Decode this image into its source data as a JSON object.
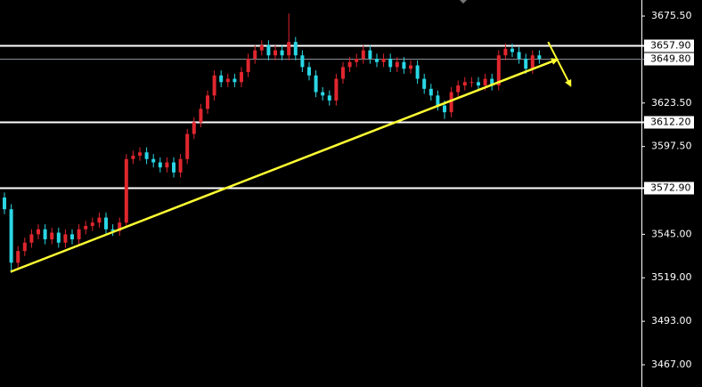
{
  "chart_data": {
    "type": "candlestick",
    "up_color": "#e0262e",
    "down_color": "#2ad6e4",
    "ylim": [
      3453.7,
      3685.1
    ],
    "yticks": [
      {
        "value": 3675.5,
        "label": "3675.50"
      },
      {
        "value": 3623.5,
        "label": "3623.50"
      },
      {
        "value": 3597.5,
        "label": "3597.50"
      },
      {
        "value": 3545,
        "label": "3545.00"
      },
      {
        "value": 3519,
        "label": "3519.00"
      },
      {
        "value": 3493,
        "label": "3493.00"
      },
      {
        "value": 3467,
        "label": "3467.00"
      }
    ],
    "levels": [
      {
        "value": 3657.9,
        "label": "3657.90",
        "color": "#ffffff"
      },
      {
        "value": 3649.8,
        "label": "3649.80",
        "color": "#8a8f99"
      },
      {
        "value": 3612.2,
        "label": "3612.20",
        "color": "#ffffff"
      },
      {
        "value": 3572.9,
        "label": "3572.90",
        "color": "#ffffff"
      }
    ],
    "trendlines": [
      {
        "x": [
          0.9,
          81.6
        ],
        "y": [
          3522.6,
          3649.5
        ],
        "color": "#ffff33"
      },
      {
        "x": [
          80.3,
          83.6
        ],
        "y": [
          3660,
          3634
        ],
        "color": "#ffff33"
      }
    ],
    "open": [
      3567,
      3560,
      3528,
      3535,
      3540,
      3545,
      3548,
      3542,
      3546,
      3540,
      3545,
      3542,
      3548,
      3550,
      3552,
      3555,
      3548,
      3547,
      3552,
      3590,
      3592,
      3594,
      3590,
      3588,
      3585,
      3588,
      3582,
      3590,
      3605,
      3612,
      3620,
      3628,
      3640,
      3636,
      3638,
      3636,
      3642,
      3650,
      3655,
      3658,
      3652,
      3655,
      3652,
      3660,
      3652,
      3645,
      3640,
      3630,
      3628,
      3625,
      3638,
      3645,
      3648,
      3650,
      3655,
      3650,
      3648,
      3650,
      3645,
      3648,
      3644,
      3646,
      3638,
      3632,
      3628,
      3622,
      3618,
      3630,
      3634,
      3636,
      3636,
      3634,
      3638,
      3634,
      3652,
      3656,
      3654,
      3650,
      3644,
      3652
    ],
    "high": [
      3570,
      3563,
      3538,
      3543,
      3548,
      3551,
      3551,
      3549,
      3549,
      3548,
      3548,
      3551,
      3553,
      3555,
      3558,
      3558,
      3551,
      3555,
      3593,
      3595,
      3597,
      3597,
      3593,
      3591,
      3591,
      3591,
      3593,
      3608,
      3615,
      3623,
      3631,
      3643,
      3643,
      3641,
      3641,
      3645,
      3653,
      3658,
      3661,
      3661,
      3658,
      3658,
      3677,
      3663,
      3655,
      3648,
      3643,
      3633,
      3631,
      3641,
      3648,
      3651,
      3653,
      3658,
      3658,
      3653,
      3653,
      3653,
      3651,
      3651,
      3649,
      3649,
      3641,
      3635,
      3631,
      3625,
      3633,
      3637,
      3639,
      3639,
      3639,
      3641,
      3641,
      3655,
      3659,
      3659,
      3657,
      3653,
      3655,
      3655
    ],
    "low": [
      3557,
      3522,
      3525,
      3532,
      3537,
      3542,
      3539,
      3539,
      3537,
      3537,
      3539,
      3539,
      3545,
      3547,
      3549,
      3545,
      3544,
      3544,
      3549,
      3587,
      3589,
      3587,
      3585,
      3582,
      3582,
      3579,
      3579,
      3587,
      3602,
      3609,
      3617,
      3625,
      3633,
      3633,
      3633,
      3633,
      3639,
      3647,
      3652,
      3649,
      3649,
      3649,
      3649,
      3649,
      3642,
      3637,
      3627,
      3625,
      3622,
      3622,
      3635,
      3642,
      3645,
      3647,
      3647,
      3645,
      3645,
      3642,
      3642,
      3641,
      3641,
      3635,
      3629,
      3625,
      3619,
      3614,
      3615,
      3627,
      3631,
      3633,
      3631,
      3631,
      3631,
      3631,
      3649,
      3651,
      3647,
      3641,
      3641,
      3647
    ],
    "close": [
      3560,
      3528,
      3535,
      3540,
      3545,
      3548,
      3542,
      3546,
      3540,
      3545,
      3542,
      3548,
      3550,
      3552,
      3555,
      3548,
      3547,
      3552,
      3590,
      3592,
      3594,
      3590,
      3588,
      3585,
      3588,
      3582,
      3590,
      3605,
      3612,
      3620,
      3628,
      3640,
      3636,
      3638,
      3636,
      3642,
      3650,
      3655,
      3658,
      3652,
      3655,
      3652,
      3660,
      3652,
      3645,
      3640,
      3630,
      3628,
      3625,
      3638,
      3645,
      3648,
      3650,
      3655,
      3650,
      3648,
      3650,
      3645,
      3648,
      3644,
      3646,
      3638,
      3632,
      3628,
      3622,
      3618,
      3630,
      3634,
      3636,
      3636,
      3634,
      3638,
      3634,
      3652,
      3656,
      3654,
      3650,
      3644,
      3652,
      3650
    ]
  }
}
